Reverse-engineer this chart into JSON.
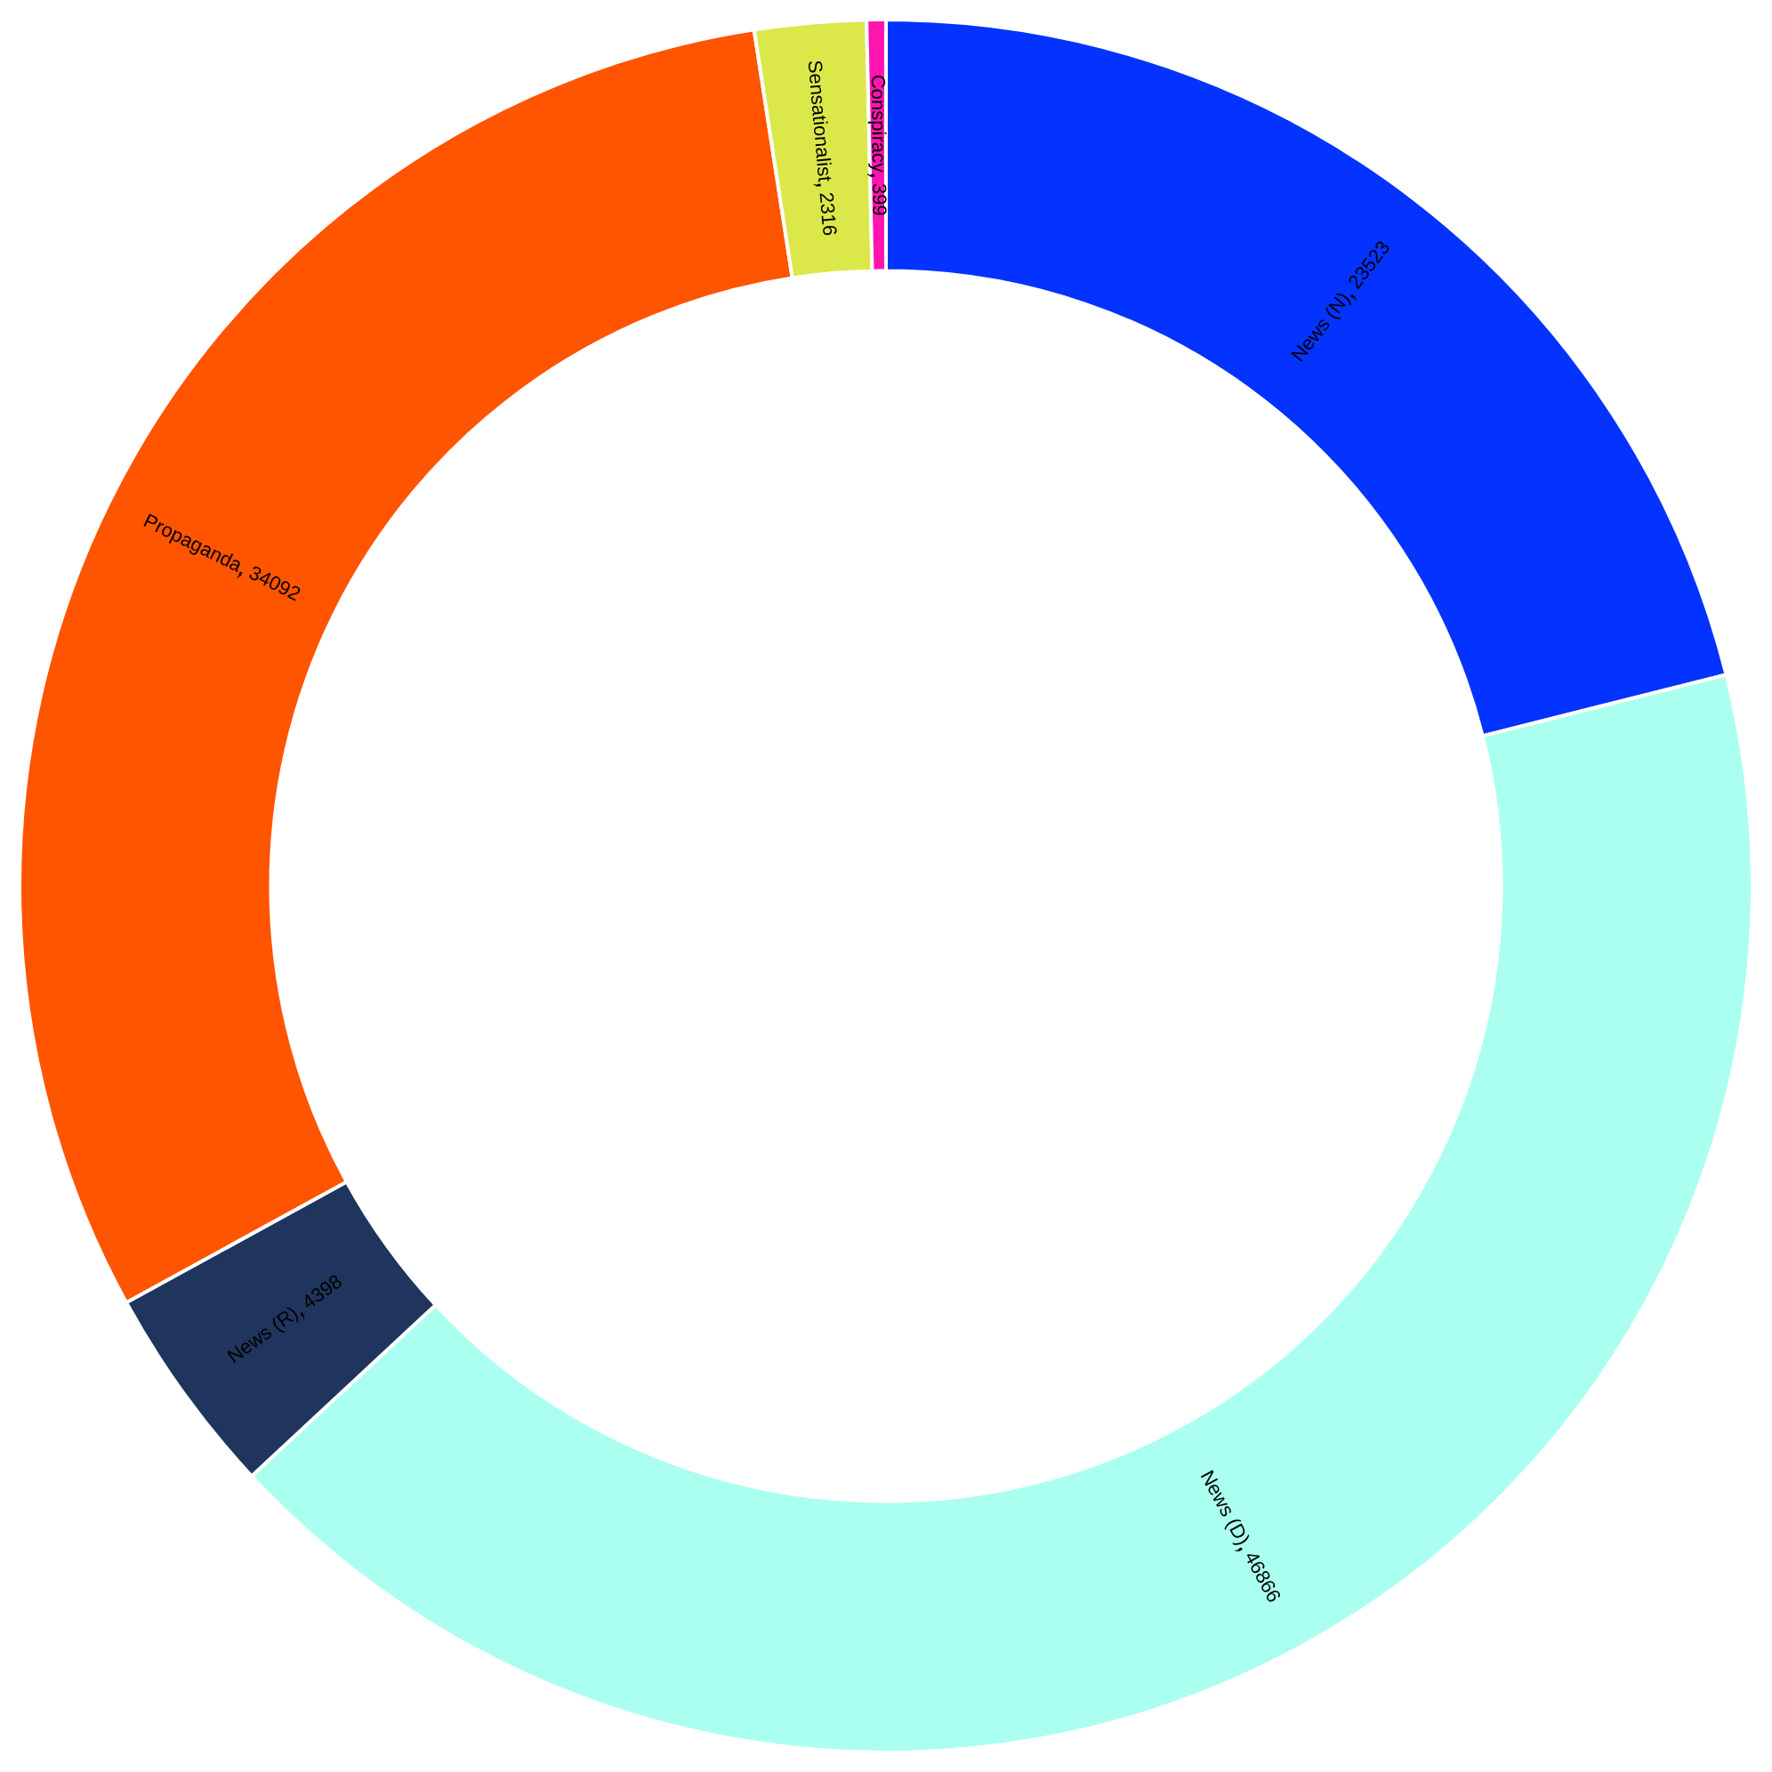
{
  "chart_data": {
    "type": "donut",
    "categories": [
      "News (N)",
      "News (D)",
      "News (R)",
      "Propaganda",
      "Sensationalist",
      "Conspiracy"
    ],
    "values": [
      23523,
      46866,
      4398,
      34092,
      2316,
      399
    ],
    "colors": [
      "#0433ff",
      "#abfff0",
      "#1f355e",
      "#ff5400",
      "#dce84a",
      "#ff14b0"
    ],
    "data_labels": true,
    "legend": false
  }
}
